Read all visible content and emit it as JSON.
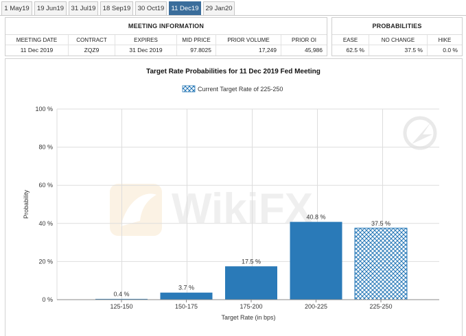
{
  "tabs": [
    "1 May19",
    "19 Jun19",
    "31 Jul19",
    "18 Sep19",
    "30 Oct19",
    "11 Dec19",
    "29 Jan20"
  ],
  "active_tab": 5,
  "meeting_info": {
    "heading": "MEETING INFORMATION",
    "columns": [
      "MEETING DATE",
      "CONTRACT",
      "EXPIRES",
      "MID PRICE",
      "PRIOR VOLUME",
      "PRIOR OI"
    ],
    "values": [
      "11 Dec 2019",
      "ZQZ9",
      "31 Dec 2019",
      "97.8025",
      "17,249",
      "45,986"
    ]
  },
  "probabilities": {
    "heading": "PROBABILITIES",
    "columns": [
      "EASE",
      "NO CHANGE",
      "HIKE"
    ],
    "values": [
      "62.5 %",
      "37.5 %",
      "0.0 %"
    ]
  },
  "watermark": "WikiFX",
  "colors": {
    "bar": "#2a7ab8",
    "hatch": "#2a7ab8",
    "tab_active": "#3a6d9b",
    "grid": "#dddddd"
  },
  "chart_data": {
    "type": "bar",
    "title": "Target Rate Probabilities for 11 Dec 2019 Fed Meeting",
    "legend": "Current Target Rate of 225-250",
    "xlabel": "Target Rate (in bps)",
    "ylabel": "Probability",
    "categories": [
      "125-150",
      "150-175",
      "175-200",
      "200-225",
      "225-250"
    ],
    "values": [
      0.4,
      3.7,
      17.5,
      40.8,
      37.5
    ],
    "value_labels": [
      "0.4 %",
      "3.7 %",
      "17.5 %",
      "40.8 %",
      "37.5 %"
    ],
    "highlight_index": 4,
    "yticks": [
      "0 %",
      "20 %",
      "40 %",
      "60 %",
      "80 %",
      "100 %"
    ],
    "ylim": [
      0,
      100
    ],
    "grid": true
  }
}
